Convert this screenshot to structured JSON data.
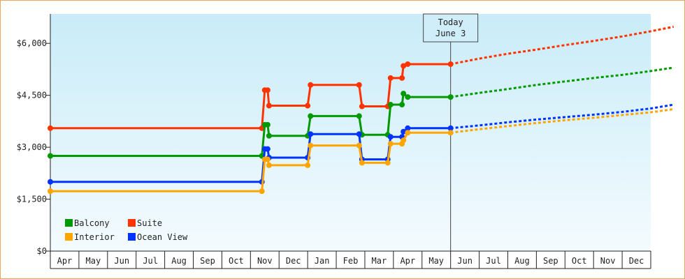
{
  "chart_data": {
    "type": "line",
    "x_months": [
      "Apr",
      "May",
      "Jun",
      "Jul",
      "Aug",
      "Sep",
      "Oct",
      "Nov",
      "Dec",
      "Jan",
      "Feb",
      "Mar",
      "Apr",
      "May",
      "Jun",
      "Jul",
      "Aug",
      "Sep",
      "Oct",
      "Nov",
      "Dec"
    ],
    "y_ticks": [
      "$0",
      "$1,500",
      "$3,000",
      "$4,500",
      "$6,000"
    ],
    "ylim": [
      0,
      6000
    ],
    "y_tick_values": [
      0,
      1500,
      3000,
      4500,
      6000
    ],
    "today_marker": {
      "line1": "Today",
      "line2": "June 3",
      "x": 14.0
    },
    "grid": false,
    "legend_position": "bottom-left",
    "series": [
      {
        "name": "Suite",
        "color": "#ff3300",
        "points": [
          [
            0.0,
            3550
          ],
          [
            7.4,
            3550
          ],
          [
            7.5,
            4650
          ],
          [
            7.6,
            4650
          ],
          [
            7.65,
            4200
          ],
          [
            9.0,
            4200
          ],
          [
            9.1,
            4800
          ],
          [
            10.8,
            4800
          ],
          [
            10.9,
            4180
          ],
          [
            11.8,
            4180
          ],
          [
            11.9,
            5000
          ],
          [
            12.3,
            5000
          ],
          [
            12.35,
            5350
          ],
          [
            12.5,
            5400
          ],
          [
            14.0,
            5400
          ]
        ],
        "forecast": [
          [
            14.0,
            5400
          ],
          [
            15,
            5560
          ],
          [
            16,
            5700
          ],
          [
            17,
            5820
          ],
          [
            18,
            5950
          ],
          [
            19,
            6070
          ],
          [
            20,
            6200
          ],
          [
            21,
            6350
          ],
          [
            21.8,
            6480
          ]
        ]
      },
      {
        "name": "Balcony",
        "color": "#009900",
        "points": [
          [
            0.0,
            2750
          ],
          [
            7.4,
            2750
          ],
          [
            7.5,
            3650
          ],
          [
            7.6,
            3650
          ],
          [
            7.65,
            3330
          ],
          [
            9.0,
            3330
          ],
          [
            9.1,
            3900
          ],
          [
            10.8,
            3900
          ],
          [
            10.9,
            3360
          ],
          [
            11.8,
            3360
          ],
          [
            11.9,
            4230
          ],
          [
            12.3,
            4230
          ],
          [
            12.35,
            4550
          ],
          [
            12.5,
            4450
          ],
          [
            14.0,
            4450
          ]
        ],
        "forecast": [
          [
            14.0,
            4450
          ],
          [
            15,
            4570
          ],
          [
            16,
            4680
          ],
          [
            17,
            4800
          ],
          [
            18,
            4900
          ],
          [
            19,
            5000
          ],
          [
            20,
            5090
          ],
          [
            21,
            5200
          ],
          [
            21.8,
            5300
          ]
        ]
      },
      {
        "name": "Ocean View",
        "color": "#0033ff",
        "points": [
          [
            0.0,
            2000
          ],
          [
            7.4,
            2000
          ],
          [
            7.5,
            2950
          ],
          [
            7.6,
            2950
          ],
          [
            7.65,
            2700
          ],
          [
            9.0,
            2700
          ],
          [
            9.1,
            3380
          ],
          [
            10.8,
            3380
          ],
          [
            10.9,
            2650
          ],
          [
            11.8,
            2650
          ],
          [
            11.9,
            3300
          ],
          [
            12.3,
            3300
          ],
          [
            12.35,
            3450
          ],
          [
            12.5,
            3550
          ],
          [
            14.0,
            3550
          ]
        ],
        "forecast": [
          [
            14.0,
            3550
          ],
          [
            15,
            3630
          ],
          [
            16,
            3720
          ],
          [
            17,
            3800
          ],
          [
            18,
            3870
          ],
          [
            19,
            3940
          ],
          [
            20,
            4020
          ],
          [
            21,
            4120
          ],
          [
            21.8,
            4230
          ]
        ]
      },
      {
        "name": "Interior",
        "color": "#ffa500",
        "points": [
          [
            0.0,
            1730
          ],
          [
            7.4,
            1730
          ],
          [
            7.5,
            2650
          ],
          [
            7.6,
            2650
          ],
          [
            7.65,
            2480
          ],
          [
            9.0,
            2480
          ],
          [
            9.1,
            3050
          ],
          [
            10.8,
            3050
          ],
          [
            10.9,
            2550
          ],
          [
            11.8,
            2550
          ],
          [
            11.9,
            3100
          ],
          [
            12.3,
            3100
          ],
          [
            12.35,
            3200
          ],
          [
            12.5,
            3420
          ],
          [
            14.0,
            3420
          ]
        ],
        "forecast": [
          [
            14.0,
            3420
          ],
          [
            15,
            3520
          ],
          [
            16,
            3610
          ],
          [
            17,
            3700
          ],
          [
            18,
            3780
          ],
          [
            19,
            3850
          ],
          [
            20,
            3930
          ],
          [
            21,
            4010
          ],
          [
            21.8,
            4100
          ]
        ]
      }
    ],
    "legend": [
      {
        "label": "Balcony",
        "color": "#009900"
      },
      {
        "label": "Suite",
        "color": "#ff3300"
      },
      {
        "label": "Interior",
        "color": "#ffa500"
      },
      {
        "label": "Ocean View",
        "color": "#0033ff"
      }
    ]
  }
}
